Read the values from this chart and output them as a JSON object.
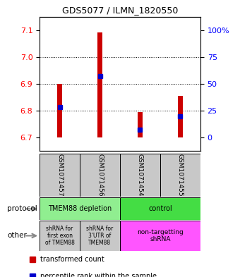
{
  "title": "GDS5077 / ILMN_1820550",
  "samples": [
    "GSM1071457",
    "GSM1071456",
    "GSM1071454",
    "GSM1071455"
  ],
  "bar_bottoms": [
    6.7,
    6.7,
    6.7,
    6.7
  ],
  "bar_tops": [
    6.9,
    7.09,
    6.795,
    6.855
  ],
  "blue_values": [
    6.812,
    6.928,
    6.728,
    6.778
  ],
  "ylim_left": [
    6.65,
    7.15
  ],
  "yticks_left": [
    6.7,
    6.8,
    6.9,
    7.0,
    7.1
  ],
  "yticks_right": [
    0,
    25,
    50,
    75,
    100
  ],
  "bar_color": "#cc0000",
  "blue_color": "#0000cc",
  "label_area_color": "#c8c8c8",
  "protocol_left_color": "#90ee90",
  "protocol_right_color": "#44dd44",
  "other_col12_color": "#c8c8c8",
  "other_right_color": "#ff55ff",
  "protocol_left_text": "TMEM88 depletion",
  "protocol_right_text": "control",
  "other_col1_text": "shRNA for\nfirst exon\nof TMEM88",
  "other_col2_text": "shRNA for\n3'UTR of\nTMEM88",
  "other_col34_text": "non-targetting\nshRNA",
  "legend_red_text": "transformed count",
  "legend_blue_text": "percentile rank within the sample",
  "protocol_label": "protocol",
  "other_label": "other",
  "bar_width": 0.12
}
